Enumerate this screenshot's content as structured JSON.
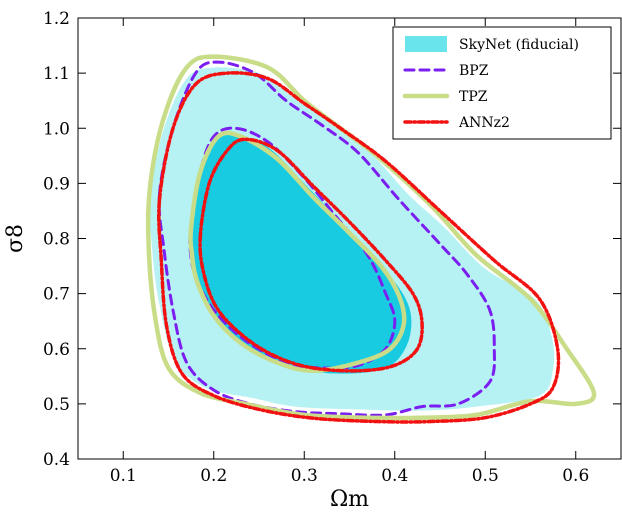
{
  "chart_data": {
    "type": "contour",
    "xlabel": "Ωm",
    "ylabel": "σ8",
    "xlim": [
      0.05,
      0.65
    ],
    "ylim": [
      0.4,
      1.2
    ],
    "xticks": [
      "0.1",
      "0.2",
      "0.3",
      "0.4",
      "0.5",
      "0.6"
    ],
    "yticks": [
      "0.4",
      "0.5",
      "0.6",
      "0.7",
      "0.8",
      "0.9",
      "1.0",
      "1.1",
      "1.2"
    ],
    "grid": false,
    "legend_position": "top-right",
    "series": [
      {
        "name": "SkyNet (fiducial)",
        "style": "filled",
        "color_outer": "#b6f1f4",
        "color_inner": "#19cbe1",
        "legend_color": "#69e3ec",
        "contours": [
          [
            [
              0.13,
              0.88
            ],
            [
              0.145,
              1.0
            ],
            [
              0.17,
              1.09
            ],
            [
              0.2,
              1.11
            ],
            [
              0.25,
              1.1
            ],
            [
              0.285,
              1.06
            ],
            [
              0.32,
              1.02
            ],
            [
              0.37,
              0.96
            ],
            [
              0.415,
              0.88
            ],
            [
              0.455,
              0.82
            ],
            [
              0.5,
              0.745
            ],
            [
              0.555,
              0.69
            ],
            [
              0.573,
              0.625
            ],
            [
              0.575,
              0.565
            ],
            [
              0.56,
              0.515
            ],
            [
              0.49,
              0.495
            ],
            [
              0.43,
              0.488
            ],
            [
              0.36,
              0.49
            ],
            [
              0.29,
              0.495
            ],
            [
              0.245,
              0.51
            ],
            [
              0.19,
              0.53
            ],
            [
              0.157,
              0.58
            ],
            [
              0.14,
              0.68
            ],
            [
              0.132,
              0.78
            ]
          ],
          [
            [
              0.175,
              0.81
            ],
            [
              0.185,
              0.91
            ],
            [
              0.2,
              0.975
            ],
            [
              0.22,
              0.99
            ],
            [
              0.26,
              0.965
            ],
            [
              0.3,
              0.9
            ],
            [
              0.34,
              0.83
            ],
            [
              0.375,
              0.765
            ],
            [
              0.405,
              0.71
            ],
            [
              0.418,
              0.66
            ],
            [
              0.413,
              0.605
            ],
            [
              0.39,
              0.565
            ],
            [
              0.34,
              0.555
            ],
            [
              0.29,
              0.565
            ],
            [
              0.24,
              0.6
            ],
            [
              0.205,
              0.65
            ],
            [
              0.183,
              0.71
            ],
            [
              0.176,
              0.76
            ]
          ]
        ]
      },
      {
        "name": "BPZ",
        "style": "dashed",
        "color": "#7a1ff0",
        "contours": [
          [
            [
              0.14,
              0.88
            ],
            [
              0.155,
              1.0
            ],
            [
              0.18,
              1.1
            ],
            [
              0.205,
              1.12
            ],
            [
              0.245,
              1.1
            ],
            [
              0.28,
              1.05
            ],
            [
              0.32,
              1.005
            ],
            [
              0.36,
              0.955
            ],
            [
              0.405,
              0.87
            ],
            [
              0.45,
              0.79
            ],
            [
              0.48,
              0.735
            ],
            [
              0.505,
              0.67
            ],
            [
              0.51,
              0.6
            ],
            [
              0.505,
              0.54
            ],
            [
              0.47,
              0.5
            ],
            [
              0.43,
              0.495
            ],
            [
              0.39,
              0.48
            ],
            [
              0.34,
              0.482
            ],
            [
              0.29,
              0.486
            ],
            [
              0.24,
              0.5
            ],
            [
              0.2,
              0.525
            ],
            [
              0.17,
              0.575
            ],
            [
              0.155,
              0.67
            ],
            [
              0.145,
              0.78
            ]
          ],
          [
            [
              0.175,
              0.82
            ],
            [
              0.185,
              0.92
            ],
            [
              0.2,
              0.985
            ],
            [
              0.225,
              1.0
            ],
            [
              0.26,
              0.975
            ],
            [
              0.3,
              0.91
            ],
            [
              0.335,
              0.84
            ],
            [
              0.37,
              0.77
            ],
            [
              0.39,
              0.7
            ],
            [
              0.4,
              0.65
            ],
            [
              0.39,
              0.6
            ],
            [
              0.36,
              0.57
            ],
            [
              0.32,
              0.565
            ],
            [
              0.28,
              0.575
            ],
            [
              0.235,
              0.615
            ],
            [
              0.2,
              0.67
            ],
            [
              0.18,
              0.73
            ],
            [
              0.174,
              0.78
            ]
          ]
        ]
      },
      {
        "name": "TPZ",
        "style": "solid",
        "color": "#c9dd88",
        "contours": [
          [
            [
              0.13,
              0.9
            ],
            [
              0.145,
              1.02
            ],
            [
              0.17,
              1.11
            ],
            [
              0.2,
              1.13
            ],
            [
              0.26,
              1.11
            ],
            [
              0.3,
              1.05
            ],
            [
              0.34,
              1.0
            ],
            [
              0.38,
              0.95
            ],
            [
              0.44,
              0.86
            ],
            [
              0.49,
              0.77
            ],
            [
              0.55,
              0.69
            ],
            [
              0.59,
              0.6
            ],
            [
              0.62,
              0.52
            ],
            [
              0.6,
              0.5
            ],
            [
              0.55,
              0.505
            ],
            [
              0.49,
              0.48
            ],
            [
              0.43,
              0.475
            ],
            [
              0.37,
              0.475
            ],
            [
              0.3,
              0.48
            ],
            [
              0.235,
              0.5
            ],
            [
              0.185,
              0.52
            ],
            [
              0.15,
              0.565
            ],
            [
              0.135,
              0.66
            ],
            [
              0.128,
              0.79
            ]
          ],
          [
            [
              0.175,
              0.82
            ],
            [
              0.185,
              0.92
            ],
            [
              0.205,
              0.985
            ],
            [
              0.23,
              0.985
            ],
            [
              0.27,
              0.945
            ],
            [
              0.31,
              0.875
            ],
            [
              0.35,
              0.81
            ],
            [
              0.385,
              0.75
            ],
            [
              0.405,
              0.695
            ],
            [
              0.41,
              0.645
            ],
            [
              0.395,
              0.6
            ],
            [
              0.36,
              0.575
            ],
            [
              0.31,
              0.56
            ],
            [
              0.27,
              0.575
            ],
            [
              0.23,
              0.61
            ],
            [
              0.2,
              0.66
            ],
            [
              0.182,
              0.72
            ],
            [
              0.176,
              0.77
            ]
          ]
        ]
      },
      {
        "name": "ANNz2",
        "style": "dotted",
        "color": "#f21111",
        "contours": [
          [
            [
              0.14,
              0.87
            ],
            [
              0.155,
              1.0
            ],
            [
              0.18,
              1.08
            ],
            [
              0.215,
              1.1
            ],
            [
              0.26,
              1.09
            ],
            [
              0.3,
              1.045
            ],
            [
              0.34,
              1.0
            ],
            [
              0.39,
              0.94
            ],
            [
              0.45,
              0.85
            ],
            [
              0.51,
              0.76
            ],
            [
              0.56,
              0.69
            ],
            [
              0.58,
              0.6
            ],
            [
              0.575,
              0.53
            ],
            [
              0.55,
              0.5
            ],
            [
              0.5,
              0.475
            ],
            [
              0.44,
              0.468
            ],
            [
              0.38,
              0.468
            ],
            [
              0.31,
              0.474
            ],
            [
              0.25,
              0.49
            ],
            [
              0.2,
              0.515
            ],
            [
              0.165,
              0.555
            ],
            [
              0.148,
              0.64
            ],
            [
              0.142,
              0.76
            ]
          ],
          [
            [
              0.185,
              0.8
            ],
            [
              0.195,
              0.9
            ],
            [
              0.215,
              0.96
            ],
            [
              0.235,
              0.98
            ],
            [
              0.27,
              0.96
            ],
            [
              0.31,
              0.895
            ],
            [
              0.35,
              0.83
            ],
            [
              0.39,
              0.76
            ],
            [
              0.42,
              0.7
            ],
            [
              0.43,
              0.65
            ],
            [
              0.425,
              0.6
            ],
            [
              0.4,
              0.57
            ],
            [
              0.36,
              0.56
            ],
            [
              0.31,
              0.565
            ],
            [
              0.27,
              0.585
            ],
            [
              0.235,
              0.62
            ],
            [
              0.205,
              0.67
            ],
            [
              0.19,
              0.73
            ]
          ]
        ]
      }
    ]
  }
}
